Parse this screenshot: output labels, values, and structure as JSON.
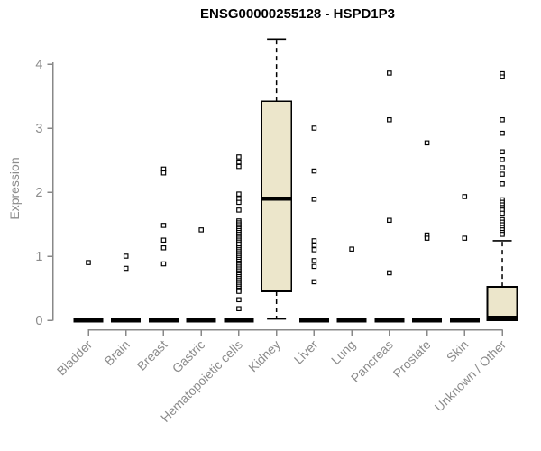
{
  "colors": {
    "background": "#ffffff",
    "box_fill": "#ece6cb",
    "box_stroke": "#000000",
    "median": "#000000",
    "outlier_stroke": "#000000",
    "outlier_fill": "#ffffff",
    "axis": "#888888",
    "tick_label": "#8c8c8c",
    "title": "#000000"
  },
  "chart_data": {
    "type": "boxplot",
    "title": "ENSG00000255128 - HSPD1P3",
    "xlabel": "",
    "ylabel": "Expression",
    "ylim": [
      0,
      4.4
    ],
    "yticks": [
      0,
      1,
      2,
      3,
      4
    ],
    "grid": false,
    "legend": "none",
    "categories": [
      "Bladder",
      "Brain",
      "Breast",
      "Gastric",
      "Hematopoietic cells",
      "Kidney",
      "Liver",
      "Lung",
      "Pancreas",
      "Prostate",
      "Skin",
      "Unknown / Other"
    ],
    "boxes": [
      {
        "category": "Bladder",
        "q1": 0,
        "median": 0,
        "q3": 0,
        "whisker_low": 0,
        "whisker_high": 0,
        "outliers": [
          0.9
        ]
      },
      {
        "category": "Brain",
        "q1": 0,
        "median": 0,
        "q3": 0,
        "whisker_low": 0,
        "whisker_high": 0,
        "outliers": [
          1.0,
          0.81
        ]
      },
      {
        "category": "Breast",
        "q1": 0,
        "median": 0,
        "q3": 0,
        "whisker_low": 0,
        "whisker_high": 0,
        "outliers": [
          2.36,
          2.3,
          1.48,
          1.25,
          1.13,
          0.88
        ]
      },
      {
        "category": "Gastric",
        "q1": 0,
        "median": 0,
        "q3": 0,
        "whisker_low": 0,
        "whisker_high": 0,
        "outliers": [
          1.41
        ]
      },
      {
        "category": "Hematopoietic cells",
        "q1": 0,
        "median": 0,
        "q3": 0,
        "whisker_low": 0,
        "whisker_high": 0,
        "outliers": [
          2.55,
          2.47,
          2.4,
          1.97,
          1.9,
          1.84,
          1.72,
          1.55,
          1.52,
          1.49,
          1.46,
          1.43,
          1.4,
          1.37,
          1.34,
          1.31,
          1.28,
          1.25,
          1.22,
          1.19,
          1.16,
          1.13,
          1.1,
          1.07,
          1.04,
          1.01,
          0.98,
          0.95,
          0.92,
          0.89,
          0.86,
          0.83,
          0.8,
          0.77,
          0.74,
          0.71,
          0.68,
          0.65,
          0.62,
          0.59,
          0.56,
          0.53,
          0.5,
          0.47,
          0.45,
          0.32,
          0.18
        ]
      },
      {
        "category": "Kidney",
        "q1": 0.45,
        "median": 1.9,
        "q3": 3.42,
        "whisker_low": 0.02,
        "whisker_high": 4.39,
        "outliers": []
      },
      {
        "category": "Liver",
        "q1": 0,
        "median": 0,
        "q3": 0,
        "whisker_low": 0,
        "whisker_high": 0,
        "outliers": [
          3.0,
          2.33,
          1.89,
          1.24,
          1.17,
          1.1,
          0.93,
          0.84,
          0.6
        ]
      },
      {
        "category": "Lung",
        "q1": 0,
        "median": 0,
        "q3": 0,
        "whisker_low": 0,
        "whisker_high": 0,
        "outliers": [
          1.11
        ]
      },
      {
        "category": "Pancreas",
        "q1": 0,
        "median": 0,
        "q3": 0,
        "whisker_low": 0,
        "whisker_high": 0,
        "outliers": [
          3.86,
          3.13,
          1.56,
          0.74
        ]
      },
      {
        "category": "Prostate",
        "q1": 0,
        "median": 0,
        "q3": 0,
        "whisker_low": 0,
        "whisker_high": 0,
        "outliers": [
          2.77,
          1.33,
          1.28
        ]
      },
      {
        "category": "Skin",
        "q1": 0,
        "median": 0,
        "q3": 0,
        "whisker_low": 0,
        "whisker_high": 0,
        "outliers": [
          1.93,
          1.28
        ]
      },
      {
        "category": "Unknown / Other",
        "q1": 0.0,
        "median": 0.04,
        "q3": 0.52,
        "whisker_low": 0.0,
        "whisker_high": 1.24,
        "outliers": [
          3.85,
          3.8,
          3.13,
          2.92,
          2.63,
          2.51,
          2.38,
          2.28,
          2.13,
          1.88,
          1.84,
          1.8,
          1.76,
          1.72,
          1.67,
          1.57,
          1.53,
          1.49,
          1.45,
          1.41,
          1.37,
          1.34
        ]
      }
    ]
  }
}
